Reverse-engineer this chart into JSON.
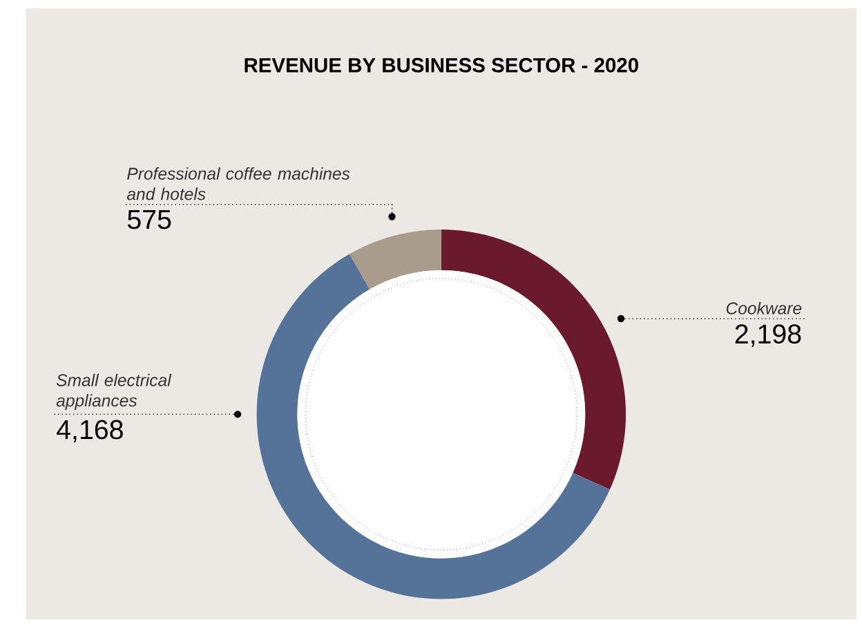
{
  "chart_data": {
    "type": "donut",
    "title": "REVENUE BY BUSINESS SECTOR - 2020",
    "categories": [
      "Cookware",
      "Small electrical appliances",
      "Professional coffee machines and hotels"
    ],
    "values": [
      2198,
      4168,
      575
    ],
    "value_labels": [
      "2,198",
      "4,168",
      "575"
    ],
    "colors": [
      "#6b1a2e",
      "#557399",
      "#a89c8c"
    ]
  }
}
